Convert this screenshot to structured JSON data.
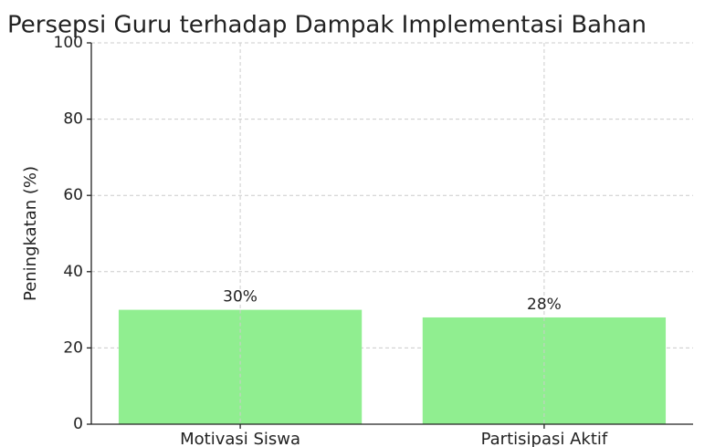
{
  "chart_data": {
    "type": "bar",
    "title": "Persepsi Guru terhadap Dampak Implementasi Bahan",
    "y_label": "Peningkatan (%)",
    "categories": [
      "Motivasi Siswa",
      "Partisipasi Aktif"
    ],
    "values": [
      30,
      28
    ],
    "value_labels": [
      "30%",
      "28%"
    ],
    "color": "#90ee90",
    "ylim": [
      0,
      100
    ],
    "yticks": [
      0,
      20,
      40,
      60,
      80,
      100
    ],
    "grid": true
  }
}
